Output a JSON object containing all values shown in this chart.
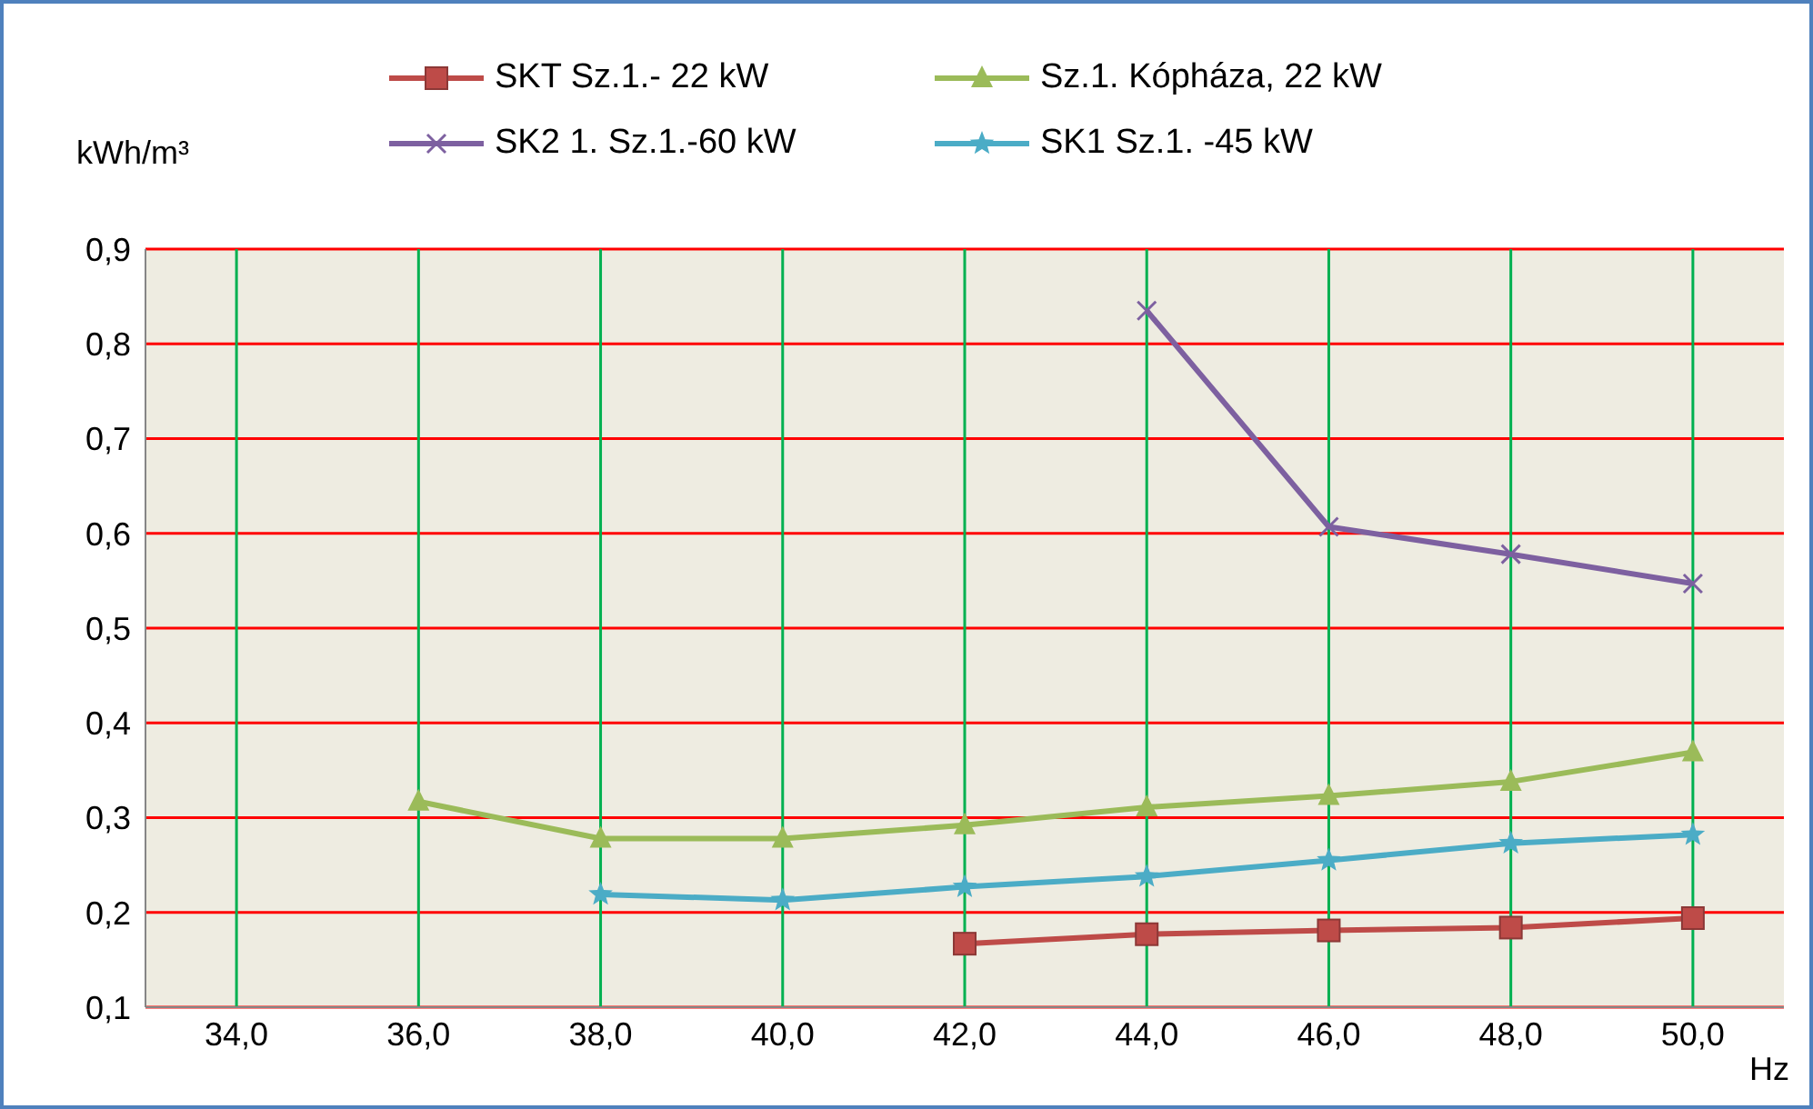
{
  "chart_data": {
    "type": "line",
    "ylabel": "kWh/m³",
    "xlabel": "Hz",
    "xlim": [
      33,
      51
    ],
    "xticks": [
      {
        "value": 34,
        "label": "34,0"
      },
      {
        "value": 36,
        "label": "36,0"
      },
      {
        "value": 38,
        "label": "38,0"
      },
      {
        "value": 40,
        "label": "40,0"
      },
      {
        "value": 42,
        "label": "42,0"
      },
      {
        "value": 44,
        "label": "44,0"
      },
      {
        "value": 46,
        "label": "46,0"
      },
      {
        "value": 48,
        "label": "48,0"
      },
      {
        "value": 50,
        "label": "50,0"
      }
    ],
    "ylim": [
      0.1,
      0.9
    ],
    "yticks": [
      {
        "value": 0.1,
        "label": "0,1"
      },
      {
        "value": 0.2,
        "label": "0,2"
      },
      {
        "value": 0.3,
        "label": "0,3"
      },
      {
        "value": 0.4,
        "label": "0,4"
      },
      {
        "value": 0.5,
        "label": "0,5"
      },
      {
        "value": 0.6,
        "label": "0,6"
      },
      {
        "value": 0.7,
        "label": "0,7"
      },
      {
        "value": 0.8,
        "label": "0,8"
      },
      {
        "value": 0.9,
        "label": "0,9"
      }
    ],
    "grid": true,
    "legend": "top",
    "line_style": "solid",
    "series": [
      {
        "name": "SKT Sz.1.- 22 kW",
        "color": "#be4b48",
        "marker": "square",
        "x": [
          42,
          44,
          46,
          48,
          50
        ],
        "values": [
          0.167,
          0.177,
          0.181,
          0.184,
          0.194
        ]
      },
      {
        "name": "Sz.1. Kópháza, 22 kW",
        "color": "#9bbb59",
        "marker": "triangle",
        "x": [
          36,
          38,
          40,
          42,
          44,
          46,
          48,
          50
        ],
        "values": [
          0.317,
          0.278,
          0.278,
          0.292,
          0.311,
          0.323,
          0.338,
          0.369
        ]
      },
      {
        "name": "SK2 1. Sz.1.-60 kW",
        "color": "#7d60a0",
        "marker": "cross",
        "x": [
          44,
          46,
          48,
          50
        ],
        "values": [
          0.835,
          0.607,
          0.578,
          0.547
        ]
      },
      {
        "name": "SK1 Sz.1. -45 kW",
        "color": "#4bacc6",
        "marker": "star",
        "x": [
          38,
          40,
          42,
          44,
          46,
          48,
          50
        ],
        "values": [
          0.219,
          0.213,
          0.227,
          0.238,
          0.255,
          0.273,
          0.282
        ]
      }
    ]
  }
}
